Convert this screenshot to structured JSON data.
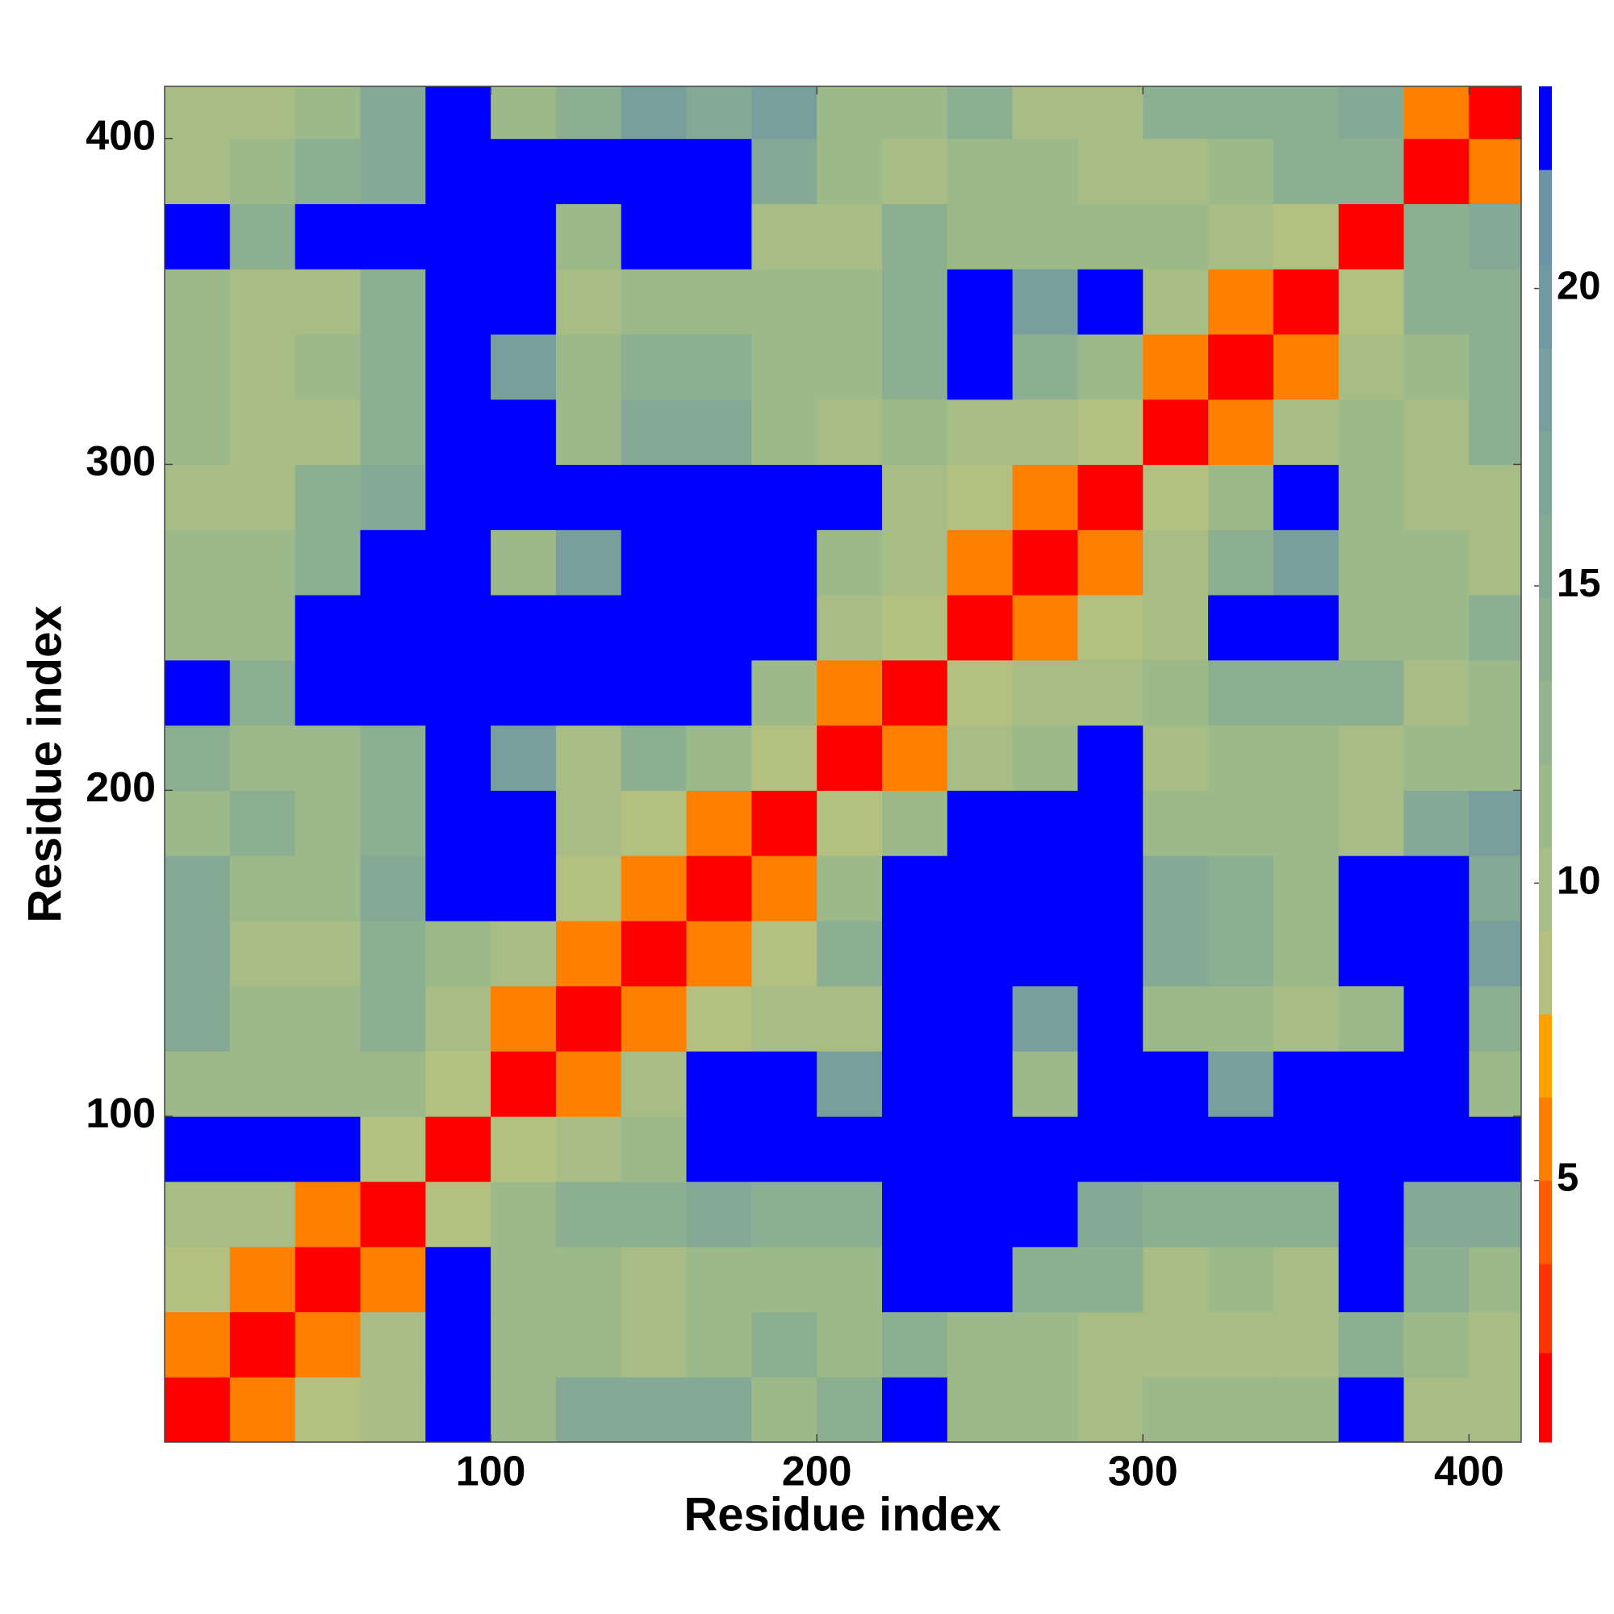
{
  "chart_data": {
    "type": "heatmap",
    "x_label": "Residue index",
    "y_label": "Residue index",
    "bins": [
      0,
      20,
      40,
      60,
      80,
      100,
      120,
      140,
      160,
      180,
      200,
      220,
      240,
      260,
      280,
      300,
      320,
      340,
      360,
      380,
      400,
      420
    ],
    "xlim": [
      0,
      416
    ],
    "ylim": [
      0,
      416
    ],
    "xticks": [
      100,
      200,
      300,
      400
    ],
    "yticks": [
      100,
      200,
      300,
      400
    ],
    "z": [
      [
        2,
        6,
        8,
        10,
        23,
        12,
        16,
        16,
        16,
        12,
        14,
        23,
        12,
        12,
        10,
        12,
        12,
        12,
        23,
        10,
        10
      ],
      [
        6,
        2,
        6,
        10,
        23,
        12,
        12,
        10,
        12,
        14,
        12,
        14,
        12,
        12,
        10,
        10,
        10,
        10,
        14,
        12,
        10
      ],
      [
        8,
        6,
        2,
        6,
        23,
        12,
        12,
        10,
        12,
        12,
        12,
        23,
        23,
        14,
        14,
        10,
        12,
        10,
        23,
        14,
        12
      ],
      [
        10,
        10,
        6,
        2,
        8,
        12,
        14,
        14,
        16,
        14,
        14,
        23,
        23,
        23,
        16,
        14,
        14,
        14,
        23,
        16,
        16
      ],
      [
        23,
        23,
        23,
        8,
        2,
        8,
        10,
        12,
        23,
        23,
        23,
        23,
        23,
        23,
        23,
        23,
        23,
        23,
        23,
        23,
        23
      ],
      [
        12,
        12,
        12,
        12,
        8,
        2,
        6,
        10,
        23,
        23,
        18,
        23,
        23,
        12,
        23,
        23,
        18,
        23,
        23,
        23,
        12
      ],
      [
        16,
        12,
        12,
        14,
        10,
        6,
        2,
        6,
        8,
        10,
        10,
        23,
        23,
        18,
        23,
        12,
        12,
        10,
        12,
        23,
        14
      ],
      [
        16,
        10,
        10,
        14,
        12,
        10,
        6,
        2,
        6,
        8,
        14,
        23,
        23,
        23,
        23,
        16,
        14,
        12,
        23,
        23,
        18
      ],
      [
        16,
        12,
        12,
        16,
        23,
        23,
        8,
        6,
        2,
        6,
        12,
        23,
        23,
        23,
        23,
        16,
        14,
        12,
        23,
        23,
        16
      ],
      [
        12,
        14,
        12,
        14,
        23,
        23,
        10,
        8,
        6,
        2,
        8,
        12,
        23,
        23,
        23,
        12,
        12,
        12,
        10,
        16,
        18
      ],
      [
        14,
        12,
        12,
        14,
        23,
        18,
        10,
        14,
        12,
        8,
        2,
        6,
        10,
        12,
        23,
        10,
        12,
        12,
        10,
        12,
        12
      ],
      [
        23,
        14,
        23,
        23,
        23,
        23,
        23,
        23,
        23,
        12,
        6,
        2,
        8,
        10,
        10,
        12,
        14,
        14,
        14,
        10,
        12
      ],
      [
        12,
        12,
        23,
        23,
        23,
        23,
        23,
        23,
        23,
        23,
        10,
        8,
        2,
        6,
        8,
        10,
        23,
        23,
        12,
        12,
        14
      ],
      [
        12,
        12,
        14,
        23,
        23,
        12,
        18,
        23,
        23,
        23,
        12,
        10,
        6,
        2,
        6,
        10,
        14,
        18,
        12,
        12,
        10
      ],
      [
        10,
        10,
        14,
        16,
        23,
        23,
        23,
        23,
        23,
        23,
        23,
        10,
        8,
        6,
        2,
        8,
        12,
        23,
        12,
        10,
        10
      ],
      [
        12,
        10,
        10,
        14,
        23,
        23,
        12,
        16,
        16,
        12,
        10,
        12,
        10,
        10,
        8,
        2,
        6,
        10,
        12,
        10,
        14
      ],
      [
        12,
        10,
        12,
        14,
        23,
        18,
        12,
        14,
        14,
        12,
        12,
        14,
        23,
        14,
        12,
        6,
        2,
        6,
        10,
        12,
        14
      ],
      [
        12,
        10,
        10,
        14,
        23,
        23,
        10,
        12,
        12,
        12,
        12,
        14,
        23,
        18,
        23,
        10,
        6,
        2,
        8,
        14,
        14
      ],
      [
        23,
        14,
        23,
        23,
        23,
        23,
        12,
        23,
        23,
        10,
        10,
        14,
        12,
        12,
        12,
        12,
        10,
        8,
        2,
        14,
        16
      ],
      [
        10,
        12,
        14,
        16,
        23,
        23,
        23,
        23,
        23,
        16,
        12,
        10,
        12,
        12,
        10,
        10,
        12,
        14,
        14,
        2,
        6
      ],
      [
        10,
        10,
        12,
        16,
        23,
        12,
        14,
        18,
        16,
        18,
        12,
        12,
        14,
        10,
        10,
        14,
        14,
        14,
        16,
        6,
        2
      ]
    ],
    "color_levels": [
      0.6,
      2.1,
      3.6,
      5,
      6.4,
      7.8,
      9.2,
      10.6,
      12,
      13.4,
      14.8,
      16.2,
      17.6,
      19,
      20.4,
      22,
      23.4
    ],
    "colors": [
      "#ff0000",
      "#ff3300",
      "#ff5a00",
      "#ff8000",
      "#ffa200",
      "#b4c080",
      "#a8bd85",
      "#9cb98a",
      "#94b48e",
      "#8caf92",
      "#84aa96",
      "#7ea59a",
      "#789f9e",
      "#7299a2",
      "#6c93a6",
      "#0000ff"
    ],
    "colorbar_ticks": [
      5,
      10,
      15,
      20
    ]
  }
}
